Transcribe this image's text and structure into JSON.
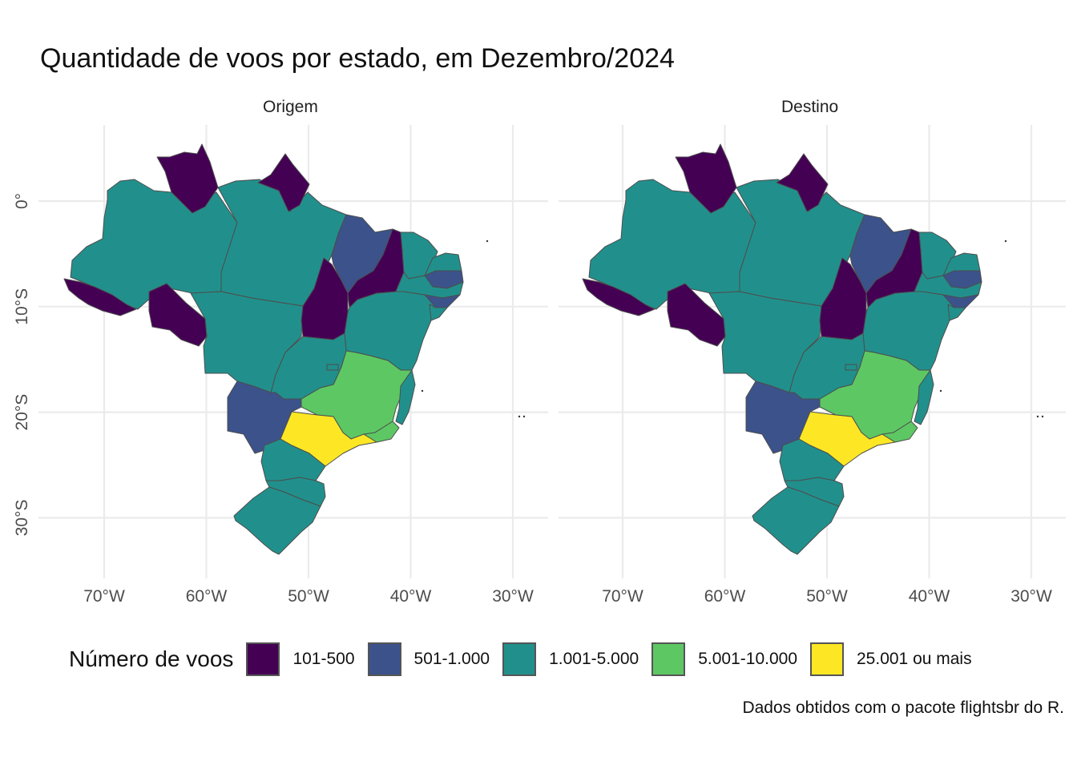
{
  "title": "Quantidade de voos por estado, em Dezembro/2024",
  "caption": "Dados obtidos com o pacote flightsbr do R.",
  "legend": {
    "title": "Número de voos",
    "entries": [
      {
        "label": "101-500",
        "color": "#440154"
      },
      {
        "label": "501-1.000",
        "color": "#3b528b"
      },
      {
        "label": "1.001-5.000",
        "color": "#21908c"
      },
      {
        "label": "5.001-10.000",
        "color": "#5dc863"
      },
      {
        "label": "25.001 ou mais",
        "color": "#fde725"
      }
    ]
  },
  "axes": {
    "x_ticks": [
      "70°W",
      "60°W",
      "50°W",
      "40°W",
      "30°W"
    ],
    "y_ticks": [
      "0°",
      "10°S",
      "20°S",
      "30°S"
    ]
  },
  "chart_data": [
    {
      "type": "choropleth",
      "facet": "Origem",
      "categories": {
        "AC": "101-500",
        "RR": "101-500",
        "AP": "101-500",
        "RO": "101-500",
        "TO": "101-500",
        "PI": "101-500",
        "MA": "501-1.000",
        "MS": "501-1.000",
        "PB": "501-1.000",
        "AL": "501-1.000",
        "AM": "1.001-5.000",
        "PA": "1.001-5.000",
        "MT": "1.001-5.000",
        "GO": "1.001-5.000",
        "DF": "1.001-5.000",
        "BA": "1.001-5.000",
        "CE": "1.001-5.000",
        "RN": "1.001-5.000",
        "PE": "1.001-5.000",
        "SE": "1.001-5.000",
        "ES": "1.001-5.000",
        "PR": "1.001-5.000",
        "SC": "1.001-5.000",
        "RS": "1.001-5.000",
        "MG": "5.001-10.000",
        "RJ": "5.001-10.000",
        "SP": "25.001 ou mais"
      }
    },
    {
      "type": "choropleth",
      "facet": "Destino",
      "categories": {
        "AC": "101-500",
        "RR": "101-500",
        "AP": "101-500",
        "RO": "101-500",
        "TO": "101-500",
        "PI": "101-500",
        "MA": "501-1.000",
        "MS": "501-1.000",
        "PB": "501-1.000",
        "AL": "501-1.000",
        "AM": "1.001-5.000",
        "PA": "1.001-5.000",
        "MT": "1.001-5.000",
        "GO": "1.001-5.000",
        "DF": "1.001-5.000",
        "BA": "1.001-5.000",
        "CE": "1.001-5.000",
        "RN": "1.001-5.000",
        "PE": "1.001-5.000",
        "SE": "1.001-5.000",
        "ES": "1.001-5.000",
        "PR": "1.001-5.000",
        "SC": "1.001-5.000",
        "RS": "1.001-5.000",
        "MG": "5.001-10.000",
        "RJ": "5.001-10.000",
        "SP": "25.001 ou mais"
      }
    }
  ]
}
